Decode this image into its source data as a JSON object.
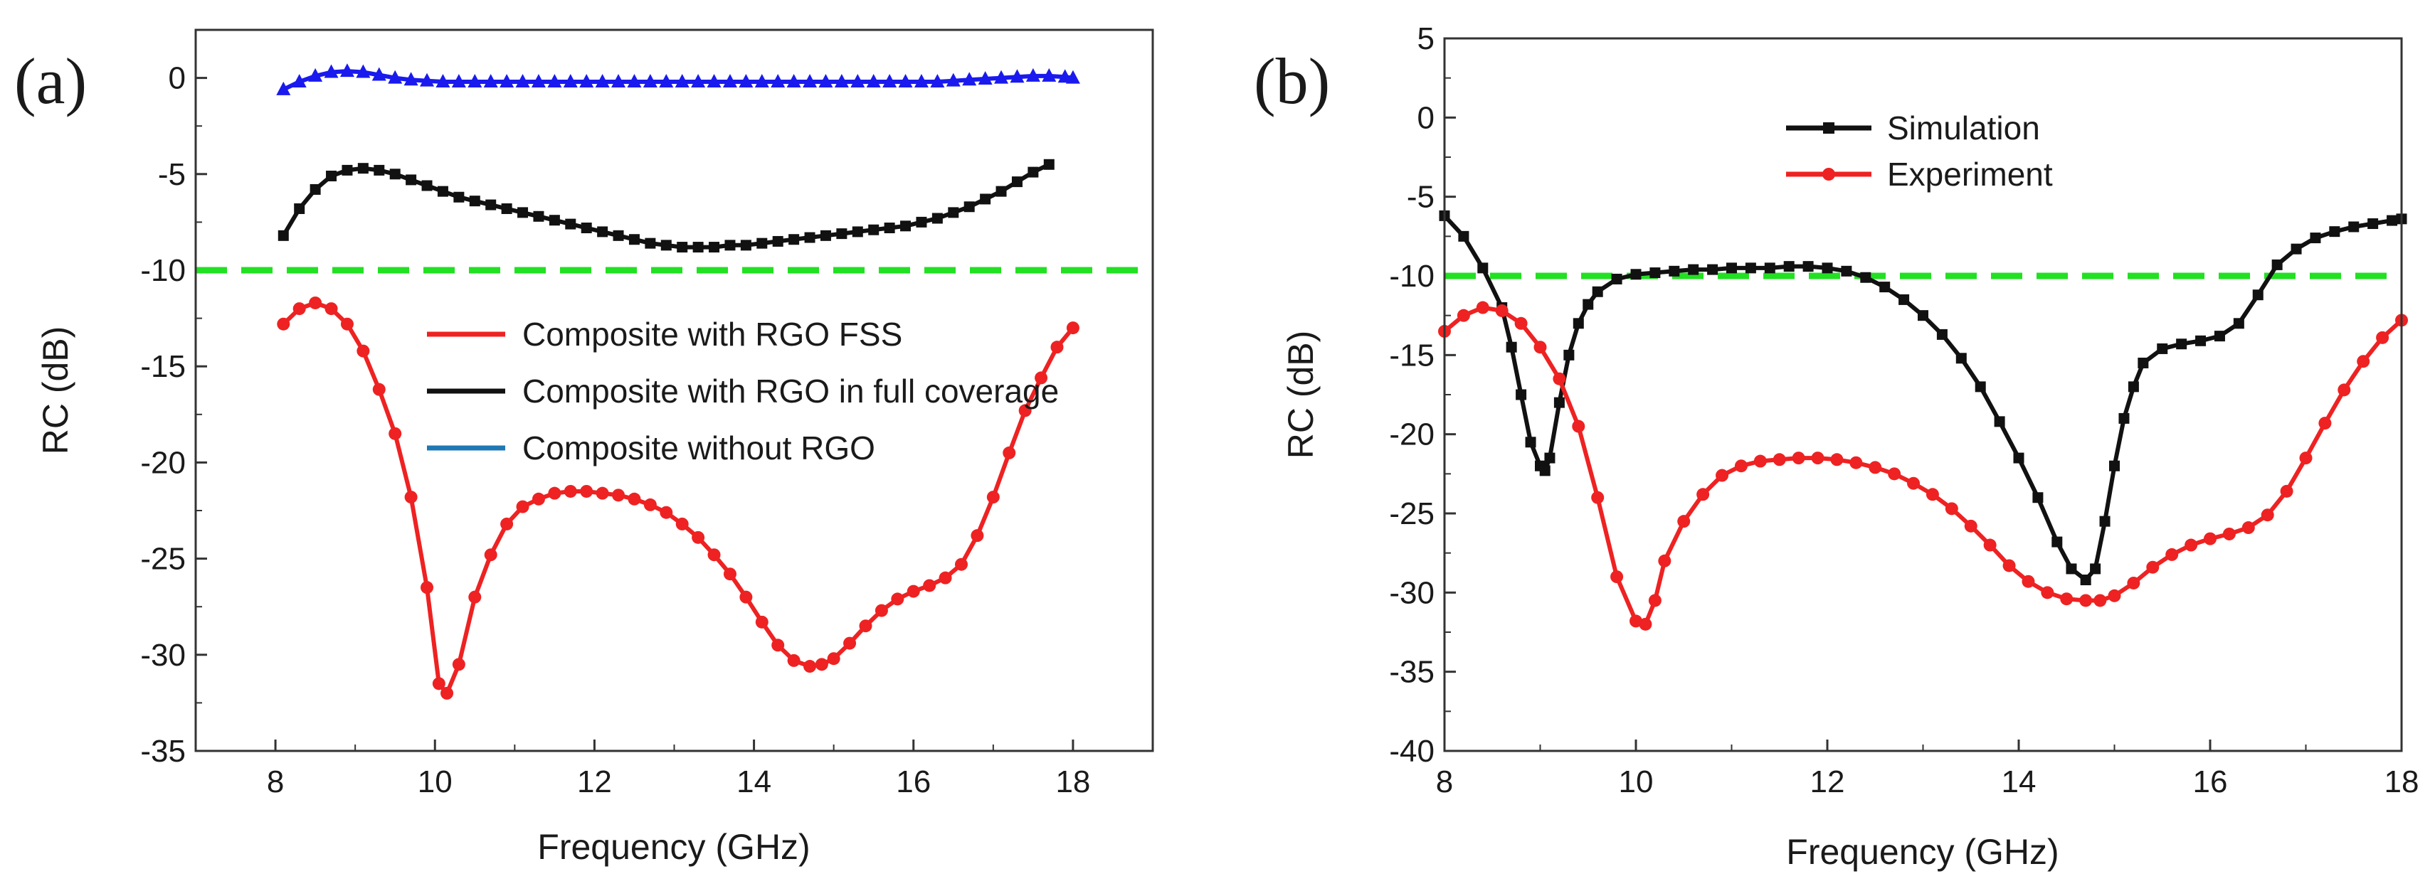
{
  "figure": {
    "panels": [
      "(a)",
      "(b)"
    ]
  },
  "chart_data": [
    {
      "panel": "(a)",
      "type": "line",
      "title": "",
      "xlabel": "Frequency (GHz)",
      "ylabel": "RC (dB)",
      "xlim": [
        7,
        19
      ],
      "ylim": [
        -35,
        2.5
      ],
      "xticks": [
        8,
        10,
        12,
        14,
        16,
        18
      ],
      "yticks": [
        -35,
        -30,
        -25,
        -20,
        -15,
        -10,
        -5,
        0
      ],
      "threshold": {
        "y": -10,
        "color": "#22e022",
        "style": "dashed"
      },
      "legend": {
        "position": "center-right"
      },
      "series": [
        {
          "name": "Composite with RGO FSS",
          "color": "#ee2222",
          "marker": "circle",
          "x": [
            8.1,
            8.3,
            8.5,
            8.7,
            8.9,
            9.1,
            9.3,
            9.5,
            9.7,
            9.9,
            10.05,
            10.15,
            10.3,
            10.5,
            10.7,
            10.9,
            11.1,
            11.3,
            11.5,
            11.7,
            11.9,
            12.1,
            12.3,
            12.5,
            12.7,
            12.9,
            13.1,
            13.3,
            13.5,
            13.7,
            13.9,
            14.1,
            14.3,
            14.5,
            14.7,
            14.85,
            15.0,
            15.2,
            15.4,
            15.6,
            15.8,
            16.0,
            16.2,
            16.4,
            16.6,
            16.8,
            17.0,
            17.2,
            17.4,
            17.6,
            17.8,
            18.0
          ],
          "y": [
            -12.8,
            -12.0,
            -11.7,
            -12.0,
            -12.8,
            -14.2,
            -16.2,
            -18.5,
            -21.8,
            -26.5,
            -31.5,
            -32.0,
            -30.5,
            -27.0,
            -24.8,
            -23.2,
            -22.3,
            -21.9,
            -21.6,
            -21.5,
            -21.5,
            -21.6,
            -21.7,
            -21.9,
            -22.2,
            -22.6,
            -23.2,
            -23.9,
            -24.8,
            -25.8,
            -27.0,
            -28.3,
            -29.5,
            -30.3,
            -30.6,
            -30.5,
            -30.2,
            -29.4,
            -28.5,
            -27.7,
            -27.1,
            -26.7,
            -26.4,
            -26.0,
            -25.3,
            -23.8,
            -21.8,
            -19.5,
            -17.3,
            -15.6,
            -14.0,
            -13.0
          ]
        },
        {
          "name": "Composite with RGO in full coverage",
          "color": "#111111",
          "marker": "square",
          "x": [
            8.1,
            8.3,
            8.5,
            8.7,
            8.9,
            9.1,
            9.3,
            9.5,
            9.7,
            9.9,
            10.1,
            10.3,
            10.5,
            10.7,
            10.9,
            11.1,
            11.3,
            11.5,
            11.7,
            11.9,
            12.1,
            12.3,
            12.5,
            12.7,
            12.9,
            13.1,
            13.3,
            13.5,
            13.7,
            13.9,
            14.1,
            14.3,
            14.5,
            14.7,
            14.9,
            15.1,
            15.3,
            15.5,
            15.7,
            15.9,
            16.1,
            16.3,
            16.5,
            16.7,
            16.9,
            17.1,
            17.3,
            17.5,
            17.7
          ],
          "y": [
            -8.2,
            -6.8,
            -5.8,
            -5.1,
            -4.8,
            -4.7,
            -4.8,
            -5.0,
            -5.3,
            -5.6,
            -5.9,
            -6.2,
            -6.4,
            -6.6,
            -6.8,
            -7.0,
            -7.2,
            -7.4,
            -7.6,
            -7.8,
            -8.0,
            -8.2,
            -8.4,
            -8.6,
            -8.7,
            -8.8,
            -8.8,
            -8.8,
            -8.7,
            -8.7,
            -8.6,
            -8.5,
            -8.4,
            -8.3,
            -8.2,
            -8.1,
            -8.0,
            -7.9,
            -7.8,
            -7.7,
            -7.5,
            -7.3,
            -7.0,
            -6.7,
            -6.3,
            -5.9,
            -5.4,
            -4.9,
            -4.5
          ]
        },
        {
          "name": "Composite without RGO",
          "color": "#1a1aee",
          "legend_color": "#1f78b4",
          "marker": "triangle",
          "x": [
            8.1,
            8.3,
            8.5,
            8.7,
            8.9,
            9.1,
            9.3,
            9.5,
            9.7,
            9.9,
            10.1,
            10.3,
            10.5,
            10.7,
            10.9,
            11.1,
            11.3,
            11.5,
            11.7,
            11.9,
            12.1,
            12.3,
            12.5,
            12.7,
            12.9,
            13.1,
            13.3,
            13.5,
            13.7,
            13.9,
            14.1,
            14.3,
            14.5,
            14.7,
            14.9,
            15.1,
            15.3,
            15.5,
            15.7,
            15.9,
            16.1,
            16.3,
            16.5,
            16.7,
            16.9,
            17.1,
            17.3,
            17.5,
            17.7,
            17.9,
            18.0
          ],
          "y": [
            -0.6,
            -0.2,
            0.1,
            0.3,
            0.35,
            0.3,
            0.15,
            0.0,
            -0.1,
            -0.15,
            -0.2,
            -0.2,
            -0.2,
            -0.2,
            -0.2,
            -0.2,
            -0.2,
            -0.2,
            -0.2,
            -0.2,
            -0.2,
            -0.2,
            -0.2,
            -0.2,
            -0.2,
            -0.2,
            -0.2,
            -0.2,
            -0.2,
            -0.2,
            -0.2,
            -0.2,
            -0.2,
            -0.2,
            -0.2,
            -0.2,
            -0.2,
            -0.2,
            -0.2,
            -0.2,
            -0.2,
            -0.2,
            -0.15,
            -0.1,
            -0.05,
            0.0,
            0.05,
            0.1,
            0.1,
            0.05,
            0.0
          ]
        }
      ]
    },
    {
      "panel": "(b)",
      "type": "line",
      "title": "",
      "xlabel": "Frequency (GHz)",
      "ylabel": "RC (dB)",
      "xlim": [
        8,
        18
      ],
      "ylim": [
        -40,
        5
      ],
      "xticks": [
        8,
        10,
        12,
        14,
        16,
        18
      ],
      "yticks": [
        -40,
        -35,
        -30,
        -25,
        -20,
        -15,
        -10,
        -5,
        0,
        5
      ],
      "threshold": {
        "y": -10,
        "color": "#22e022",
        "style": "dashed"
      },
      "legend": {
        "position": "top-center"
      },
      "series": [
        {
          "name": "Simulation",
          "color": "#111111",
          "marker": "square",
          "x": [
            8.0,
            8.2,
            8.4,
            8.6,
            8.7,
            8.8,
            8.9,
            9.0,
            9.05,
            9.1,
            9.2,
            9.3,
            9.4,
            9.5,
            9.6,
            9.8,
            10.0,
            10.2,
            10.4,
            10.6,
            10.8,
            11.0,
            11.2,
            11.4,
            11.6,
            11.8,
            12.0,
            12.2,
            12.4,
            12.6,
            12.8,
            13.0,
            13.2,
            13.4,
            13.6,
            13.8,
            14.0,
            14.2,
            14.4,
            14.55,
            14.7,
            14.8,
            14.9,
            15.0,
            15.1,
            15.2,
            15.3,
            15.5,
            15.7,
            15.9,
            16.1,
            16.3,
            16.5,
            16.7,
            16.9,
            17.1,
            17.3,
            17.5,
            17.7,
            17.9,
            18.0
          ],
          "y": [
            -6.2,
            -7.5,
            -9.5,
            -12.0,
            -14.5,
            -17.5,
            -20.5,
            -22.0,
            -22.3,
            -21.5,
            -18.0,
            -15.0,
            -13.0,
            -11.8,
            -11.0,
            -10.2,
            -9.9,
            -9.8,
            -9.7,
            -9.6,
            -9.6,
            -9.5,
            -9.5,
            -9.5,
            -9.4,
            -9.4,
            -9.5,
            -9.7,
            -10.1,
            -10.7,
            -11.5,
            -12.5,
            -13.7,
            -15.2,
            -17.0,
            -19.2,
            -21.5,
            -24.0,
            -26.8,
            -28.5,
            -29.2,
            -28.5,
            -25.5,
            -22.0,
            -19.0,
            -17.0,
            -15.5,
            -14.6,
            -14.3,
            -14.1,
            -13.8,
            -13.0,
            -11.2,
            -9.3,
            -8.3,
            -7.6,
            -7.2,
            -6.9,
            -6.7,
            -6.5,
            -6.4
          ]
        },
        {
          "name": "Experiment",
          "color": "#ee2222",
          "marker": "circle",
          "x": [
            8.0,
            8.2,
            8.4,
            8.6,
            8.8,
            9.0,
            9.2,
            9.4,
            9.6,
            9.8,
            10.0,
            10.1,
            10.2,
            10.3,
            10.5,
            10.7,
            10.9,
            11.1,
            11.3,
            11.5,
            11.7,
            11.9,
            12.1,
            12.3,
            12.5,
            12.7,
            12.9,
            13.1,
            13.3,
            13.5,
            13.7,
            13.9,
            14.1,
            14.3,
            14.5,
            14.7,
            14.85,
            15.0,
            15.2,
            15.4,
            15.6,
            15.8,
            16.0,
            16.2,
            16.4,
            16.6,
            16.8,
            17.0,
            17.2,
            17.4,
            17.6,
            17.8,
            18.0
          ],
          "y": [
            -13.5,
            -12.5,
            -12.0,
            -12.2,
            -13.0,
            -14.5,
            -16.5,
            -19.5,
            -24.0,
            -29.0,
            -31.8,
            -32.0,
            -30.5,
            -28.0,
            -25.5,
            -23.8,
            -22.6,
            -22.0,
            -21.7,
            -21.6,
            -21.5,
            -21.5,
            -21.6,
            -21.8,
            -22.1,
            -22.5,
            -23.1,
            -23.8,
            -24.7,
            -25.8,
            -27.0,
            -28.3,
            -29.3,
            -30.0,
            -30.4,
            -30.5,
            -30.5,
            -30.2,
            -29.4,
            -28.4,
            -27.6,
            -27.0,
            -26.6,
            -26.3,
            -25.9,
            -25.1,
            -23.6,
            -21.5,
            -19.3,
            -17.2,
            -15.4,
            -13.9,
            -12.8
          ]
        }
      ]
    }
  ]
}
